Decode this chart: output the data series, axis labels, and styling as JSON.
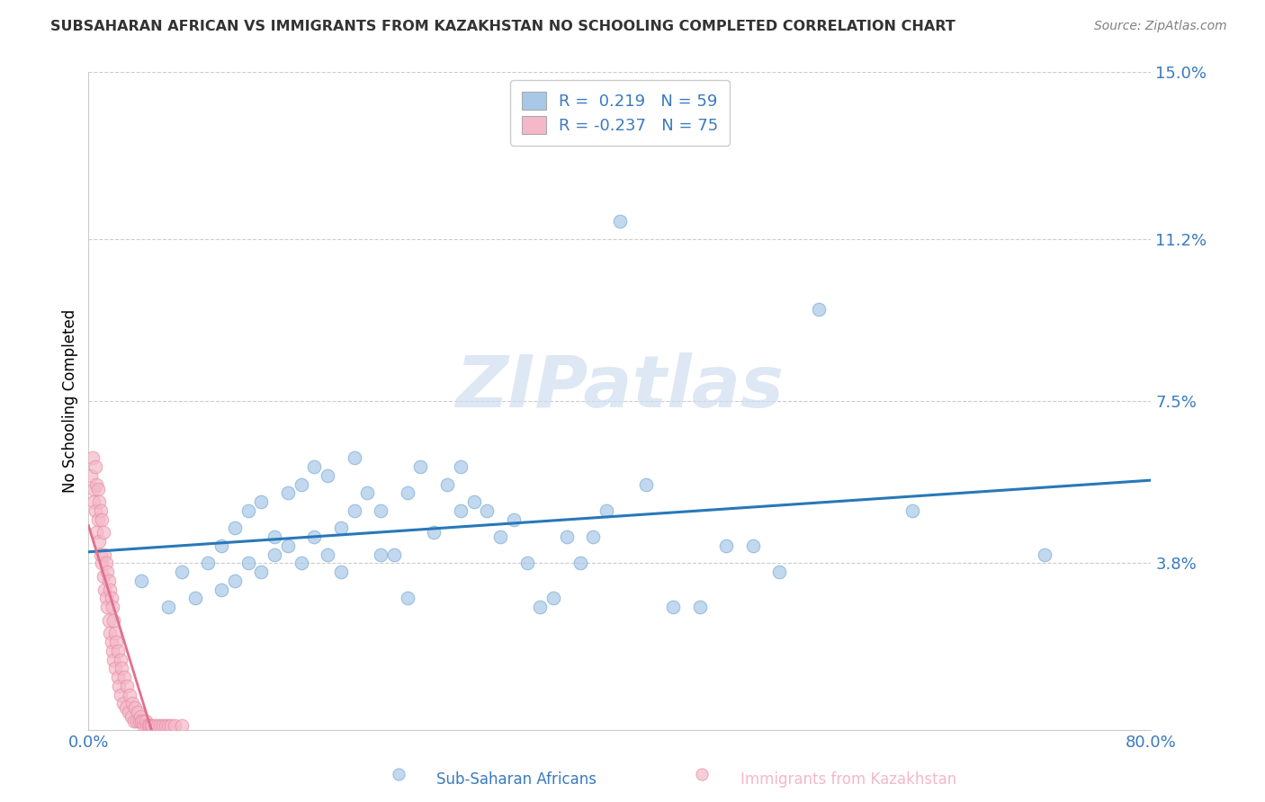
{
  "title": "SUBSAHARAN AFRICAN VS IMMIGRANTS FROM KAZAKHSTAN NO SCHOOLING COMPLETED CORRELATION CHART",
  "source": "Source: ZipAtlas.com",
  "ylabel": "No Schooling Completed",
  "xlim": [
    0.0,
    0.8
  ],
  "ylim": [
    0.0,
    0.15
  ],
  "ytick_positions": [
    0.0,
    0.038,
    0.075,
    0.112,
    0.15
  ],
  "ytick_labels": [
    "",
    "3.8%",
    "7.5%",
    "11.2%",
    "15.0%"
  ],
  "xtick_positions": [
    0.0,
    0.8
  ],
  "xtick_labels": [
    "0.0%",
    "80.0%"
  ],
  "blue_color": "#a8c8e8",
  "blue_edge_color": "#7aadd4",
  "pink_color": "#f4b8c8",
  "pink_edge_color": "#e890a8",
  "blue_line_color": "#2878b8",
  "legend_R_blue": "0.219",
  "legend_N_blue": "59",
  "legend_R_pink": "-0.237",
  "legend_N_pink": "75",
  "watermark": "ZIPatlas",
  "axis_label_color": "#3a7abf",
  "title_color": "#333333",
  "grid_color": "#cccccc",
  "blue_scatter_x": [
    0.04,
    0.06,
    0.07,
    0.08,
    0.09,
    0.1,
    0.1,
    0.11,
    0.11,
    0.12,
    0.12,
    0.13,
    0.13,
    0.14,
    0.14,
    0.15,
    0.15,
    0.16,
    0.16,
    0.17,
    0.17,
    0.18,
    0.18,
    0.19,
    0.19,
    0.2,
    0.2,
    0.21,
    0.22,
    0.22,
    0.23,
    0.24,
    0.24,
    0.25,
    0.26,
    0.27,
    0.28,
    0.28,
    0.29,
    0.3,
    0.31,
    0.32,
    0.33,
    0.34,
    0.35,
    0.36,
    0.37,
    0.38,
    0.39,
    0.4,
    0.42,
    0.44,
    0.46,
    0.48,
    0.5,
    0.52,
    0.55,
    0.62,
    0.72
  ],
  "blue_scatter_y": [
    0.034,
    0.028,
    0.036,
    0.03,
    0.038,
    0.032,
    0.042,
    0.046,
    0.034,
    0.038,
    0.05,
    0.052,
    0.036,
    0.044,
    0.04,
    0.054,
    0.042,
    0.056,
    0.038,
    0.044,
    0.06,
    0.058,
    0.04,
    0.046,
    0.036,
    0.05,
    0.062,
    0.054,
    0.04,
    0.05,
    0.04,
    0.054,
    0.03,
    0.06,
    0.045,
    0.056,
    0.05,
    0.06,
    0.052,
    0.05,
    0.044,
    0.048,
    0.038,
    0.028,
    0.03,
    0.044,
    0.038,
    0.044,
    0.05,
    0.116,
    0.056,
    0.028,
    0.028,
    0.042,
    0.042,
    0.036,
    0.096,
    0.05,
    0.04
  ],
  "pink_scatter_x": [
    0.002,
    0.003,
    0.004,
    0.004,
    0.005,
    0.005,
    0.006,
    0.006,
    0.007,
    0.007,
    0.008,
    0.008,
    0.009,
    0.009,
    0.01,
    0.01,
    0.011,
    0.011,
    0.012,
    0.012,
    0.013,
    0.013,
    0.014,
    0.014,
    0.015,
    0.015,
    0.016,
    0.016,
    0.017,
    0.017,
    0.018,
    0.018,
    0.019,
    0.019,
    0.02,
    0.02,
    0.021,
    0.022,
    0.022,
    0.023,
    0.024,
    0.024,
    0.025,
    0.026,
    0.027,
    0.028,
    0.029,
    0.03,
    0.031,
    0.032,
    0.033,
    0.034,
    0.035,
    0.036,
    0.037,
    0.038,
    0.039,
    0.04,
    0.041,
    0.042,
    0.043,
    0.044,
    0.045,
    0.046,
    0.047,
    0.048,
    0.05,
    0.052,
    0.054,
    0.056,
    0.058,
    0.06,
    0.062,
    0.065,
    0.07
  ],
  "pink_scatter_y": [
    0.058,
    0.062,
    0.052,
    0.055,
    0.06,
    0.05,
    0.056,
    0.045,
    0.048,
    0.055,
    0.043,
    0.052,
    0.04,
    0.05,
    0.038,
    0.048,
    0.035,
    0.045,
    0.032,
    0.04,
    0.03,
    0.038,
    0.028,
    0.036,
    0.025,
    0.034,
    0.022,
    0.032,
    0.02,
    0.03,
    0.018,
    0.028,
    0.016,
    0.025,
    0.014,
    0.022,
    0.02,
    0.012,
    0.018,
    0.01,
    0.016,
    0.008,
    0.014,
    0.006,
    0.012,
    0.005,
    0.01,
    0.004,
    0.008,
    0.003,
    0.006,
    0.002,
    0.005,
    0.002,
    0.004,
    0.002,
    0.003,
    0.002,
    0.002,
    0.001,
    0.002,
    0.001,
    0.001,
    0.001,
    0.001,
    0.001,
    0.001,
    0.001,
    0.001,
    0.001,
    0.001,
    0.001,
    0.001,
    0.001,
    0.001
  ]
}
